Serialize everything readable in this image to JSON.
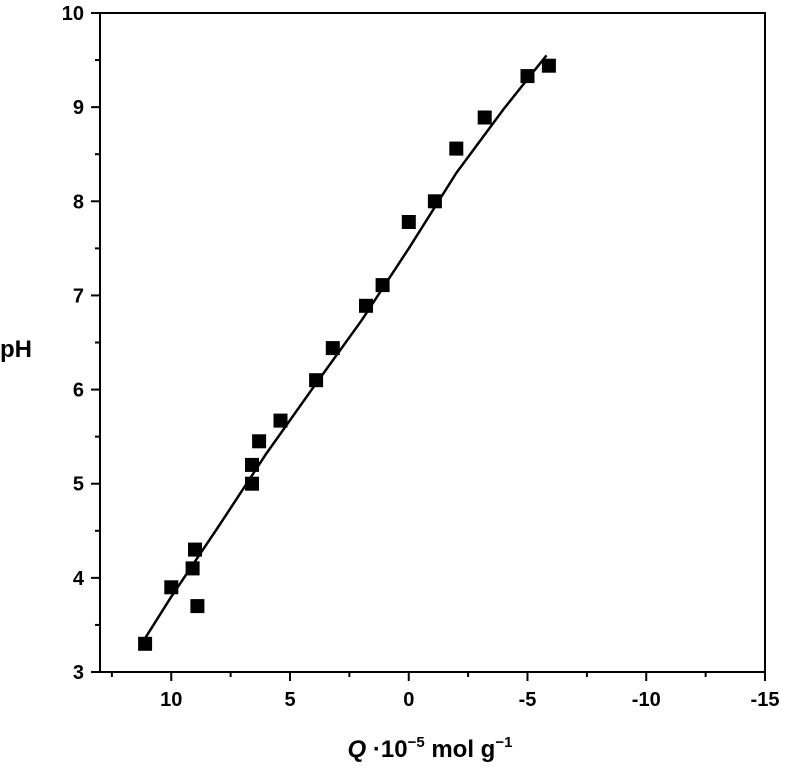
{
  "chart_data": {
    "type": "scatter",
    "xlabel": {
      "var": "Q",
      "mid": " ·10",
      "exp": "−5",
      "unit": " mol g",
      "unit_exp": "−1"
    },
    "ylabel": "pH",
    "xlim": [
      13,
      -15
    ],
    "ylim": [
      3,
      10
    ],
    "x_ticks": [
      10,
      5,
      0,
      -5,
      -10,
      -15
    ],
    "y_ticks": [
      3,
      4,
      5,
      6,
      7,
      8,
      9,
      10
    ],
    "grid": false,
    "colors": {
      "marker": "#000000",
      "line": "#000000"
    },
    "series": [
      {
        "kind": "points",
        "marker": "square",
        "x": [
          11.1,
          10.0,
          8.9,
          9.1,
          9.0,
          6.6,
          6.6,
          6.3,
          5.4,
          3.9,
          3.2,
          1.8,
          1.1,
          0.0,
          -1.1,
          -2.0,
          -3.2,
          -5.0,
          -5.9
        ],
        "y": [
          3.3,
          3.9,
          3.7,
          4.1,
          4.3,
          5.0,
          5.2,
          5.45,
          5.67,
          6.1,
          6.44,
          6.89,
          7.11,
          7.78,
          8.0,
          8.56,
          8.89,
          9.33,
          9.44
        ]
      },
      {
        "kind": "fit-line",
        "x": [
          11.2,
          10.0,
          8.0,
          6.0,
          4.0,
          2.0,
          0.0,
          -2.0,
          -4.0,
          -5.8
        ],
        "y": [
          3.32,
          3.8,
          4.55,
          5.32,
          6.03,
          6.73,
          7.5,
          8.3,
          8.98,
          9.55
        ]
      }
    ]
  }
}
